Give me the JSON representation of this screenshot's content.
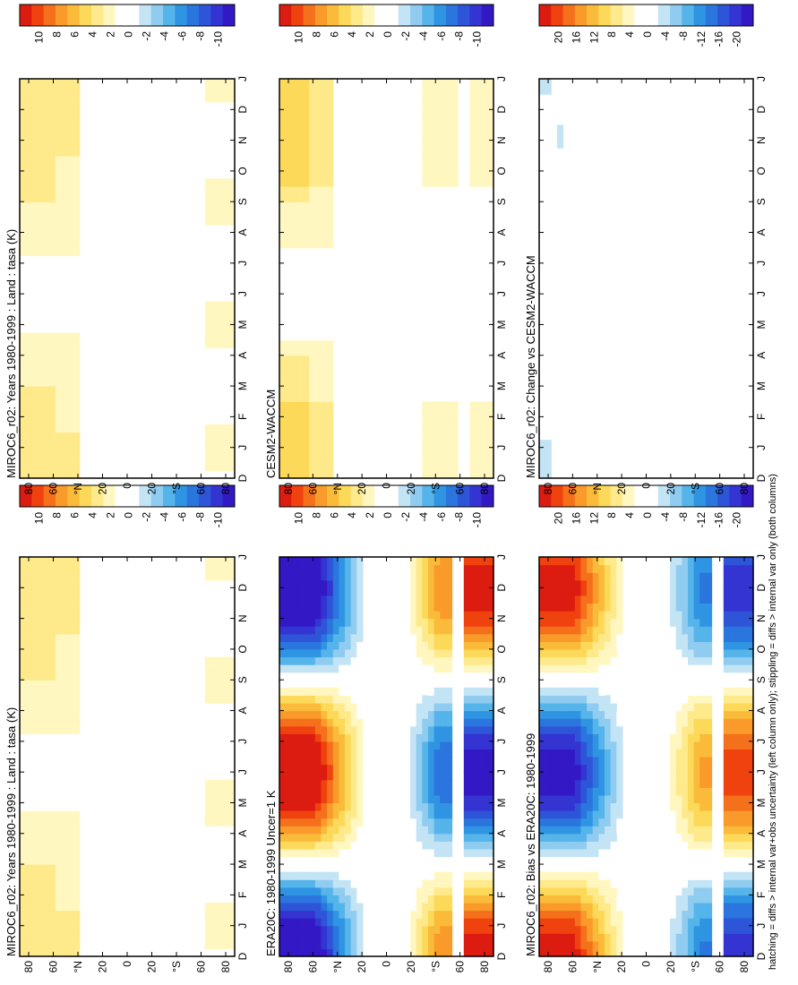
{
  "figure": {
    "footnote": "hatching = diffs > internal var+obs uncertainty (left column only); stippling = diffs > internal var only (both columns)"
  },
  "chart_data": [
    {
      "id": "left-top",
      "type": "heatmap",
      "title": "MIROC6_r02: Years 1980-1999 : Land : tasa (K)",
      "months": [
        "D",
        "J",
        "F",
        "M",
        "A",
        "M",
        "J",
        "J",
        "A",
        "S",
        "O",
        "N",
        "D",
        "J"
      ],
      "lat_labels": [
        "80",
        "60",
        "°N",
        "20",
        "0",
        "20",
        "°S",
        "60",
        "80"
      ],
      "lat_range": [
        -90,
        90
      ],
      "colorbar": {
        "ticks": [
          "10",
          "8",
          "6",
          "4",
          "2",
          "0",
          "-2",
          "-4",
          "-6",
          "-8",
          "-10"
        ]
      },
      "pattern": "model",
      "hatching": true
    },
    {
      "id": "right-top",
      "type": "heatmap",
      "title": "MIROC6_r02: Years 1980-1999 : Land : tasa (K)",
      "months": [
        "D",
        "J",
        "F",
        "M",
        "A",
        "M",
        "J",
        "J",
        "A",
        "S",
        "O",
        "N",
        "D",
        "J"
      ],
      "lat_labels": [
        "80",
        "60",
        "°N",
        "20",
        "0",
        "20",
        "°S",
        "60",
        "80"
      ],
      "lat_range": [
        -90,
        90
      ],
      "colorbar": {
        "ticks": [
          "10",
          "8",
          "6",
          "4",
          "2",
          "0",
          "-2",
          "-4",
          "-6",
          "-8",
          "-10"
        ]
      },
      "pattern": "model",
      "hatching": false
    },
    {
      "id": "left-middle",
      "type": "heatmap",
      "title": "ERA20C: 1980-1999 Uncer=1 K",
      "months": [
        "D",
        "J",
        "F",
        "M",
        "A",
        "M",
        "J",
        "J",
        "A",
        "S",
        "O",
        "N",
        "D",
        "J"
      ],
      "lat_labels": [
        "80",
        "60",
        "°N",
        "20",
        "0",
        "20",
        "°S",
        "60",
        "80"
      ],
      "lat_range": [
        -90,
        90
      ],
      "colorbar": {
        "ticks": [
          "10",
          "8",
          "6",
          "4",
          "2",
          "0",
          "-2",
          "-4",
          "-6",
          "-8",
          "-10"
        ]
      },
      "pattern": "obs",
      "hatching": true
    },
    {
      "id": "right-middle",
      "type": "heatmap",
      "title": "CESM2-WACCM",
      "months": [
        "D",
        "J",
        "F",
        "M",
        "A",
        "M",
        "J",
        "J",
        "A",
        "S",
        "O",
        "N",
        "D",
        "J"
      ],
      "lat_labels": [
        "80",
        "60",
        "°N",
        "20",
        "0",
        "20",
        "°S",
        "60",
        "80"
      ],
      "lat_range": [
        -90,
        90
      ],
      "colorbar": {
        "ticks": [
          "10",
          "8",
          "6",
          "4",
          "2",
          "0",
          "-2",
          "-4",
          "-6",
          "-8",
          "-10"
        ]
      },
      "pattern": "model2",
      "hatching": false
    },
    {
      "id": "left-bottom",
      "type": "heatmap",
      "title": "MIROC6_r02: Bias vs ERA20C: 1980-1999",
      "months": [
        "D",
        "J",
        "F",
        "M",
        "A",
        "M",
        "J",
        "J",
        "A",
        "S",
        "O",
        "N",
        "D",
        "J"
      ],
      "lat_labels": [
        "80",
        "60",
        "°N",
        "20",
        "0",
        "20",
        "°S",
        "60",
        "80"
      ],
      "lat_range": [
        -90,
        90
      ],
      "colorbar": {
        "ticks": [
          "20",
          "16",
          "12",
          "8",
          "4",
          "0",
          "-4",
          "-8",
          "-12",
          "-16",
          "-20"
        ]
      },
      "pattern": "bias",
      "hatching": true
    },
    {
      "id": "right-bottom",
      "type": "heatmap",
      "title": "MIROC6_r02: Change vs CESM2-WACCM",
      "months": [
        "D",
        "J",
        "F",
        "M",
        "A",
        "M",
        "J",
        "J",
        "A",
        "S",
        "O",
        "N",
        "D",
        "J"
      ],
      "lat_labels": [
        "80",
        "60",
        "°N",
        "20",
        "0",
        "20",
        "°S",
        "60",
        "80"
      ],
      "lat_range": [
        -90,
        90
      ],
      "colorbar": {
        "ticks": [
          "20",
          "16",
          "12",
          "8",
          "4",
          "0",
          "-4",
          "-8",
          "-12",
          "-16",
          "-20"
        ]
      },
      "pattern": "change",
      "hatching": false
    }
  ],
  "palette": [
    "#dd1c11",
    "#f0420f",
    "#f5701b",
    "#f99a2a",
    "#fbbb3a",
    "#fdd95a",
    "#fee98b",
    "#fff7bf",
    "#ffffff",
    "#ffffff",
    "#c3e4f5",
    "#8fccf0",
    "#55b4ea",
    "#2f95e3",
    "#2a75de",
    "#2e55d8",
    "#3434d2",
    "#3319c5"
  ],
  "hatch_color": "#000000"
}
